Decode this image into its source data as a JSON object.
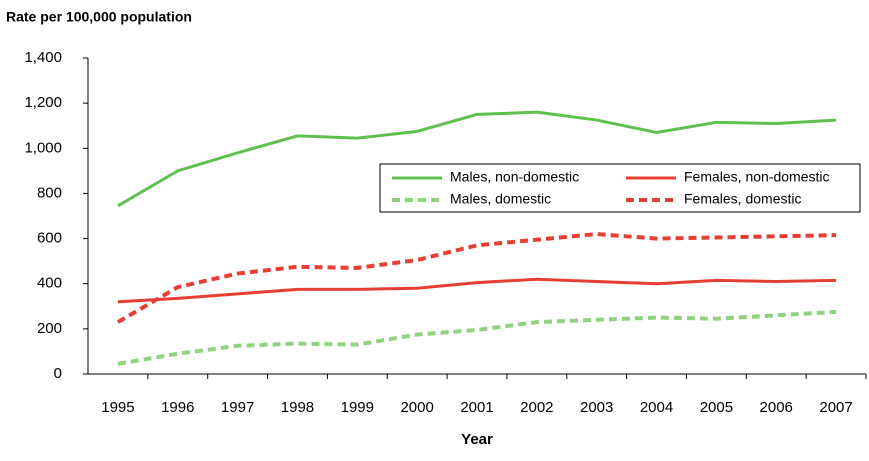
{
  "chart_data": {
    "type": "line",
    "title": "Rate per 100,000 population",
    "x_label": "Year",
    "categories": [
      "1995",
      "1996",
      "1997",
      "1998",
      "1999",
      "2000",
      "2001",
      "2002",
      "2003",
      "2004",
      "2005",
      "2006",
      "2007"
    ],
    "series": [
      {
        "name": "Males, non-domestic",
        "color": "#5fbf4f",
        "style": "solid",
        "values": [
          745,
          900,
          980,
          1055,
          1045,
          1075,
          1150,
          1160,
          1125,
          1070,
          1115,
          1110,
          1125
        ]
      },
      {
        "name": "Females, non-domestic",
        "color": "#e53f35",
        "style": "solid",
        "values": [
          320,
          335,
          355,
          375,
          375,
          380,
          405,
          420,
          410,
          400,
          415,
          410,
          415
        ]
      },
      {
        "name": "Males, domestic",
        "color": "#8fd27f",
        "style": "dashed",
        "values": [
          45,
          90,
          125,
          135,
          130,
          175,
          195,
          230,
          240,
          250,
          245,
          260,
          275
        ]
      },
      {
        "name": "Females, domestic",
        "color": "#e53f35",
        "style": "dashed",
        "values": [
          230,
          385,
          445,
          475,
          470,
          505,
          570,
          595,
          620,
          600,
          605,
          610,
          615
        ]
      }
    ],
    "ylim": [
      0,
      1400
    ],
    "yticks": [
      0,
      200,
      400,
      600,
      800,
      {
        "value": 1000,
        "label": "1,000"
      },
      {
        "value": 1200,
        "label": "1,200"
      },
      {
        "value": 1400,
        "label": "1,400"
      }
    ],
    "grid": false,
    "legend": "right"
  }
}
